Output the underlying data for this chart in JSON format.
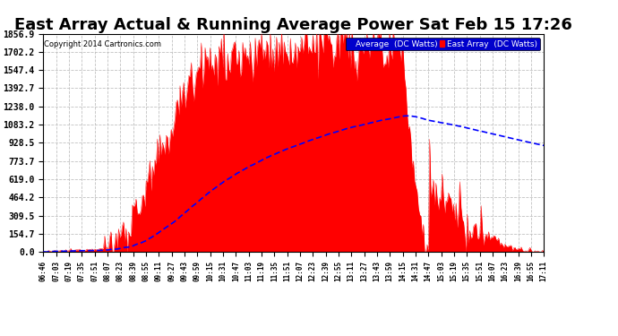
{
  "title": "East Array Actual & Running Average Power Sat Feb 15 17:26",
  "copyright": "Copyright 2014 Cartronics.com",
  "legend_avg": "Average  (DC Watts)",
  "legend_east": "East Array  (DC Watts)",
  "yticks": [
    0.0,
    154.7,
    309.5,
    464.2,
    619.0,
    773.7,
    928.5,
    1083.2,
    1238.0,
    1392.7,
    1547.4,
    1702.2,
    1856.9
  ],
  "ymax": 1856.9,
  "bg_color": "#ffffff",
  "plot_bg_color": "#ffffff",
  "grid_color": "#bbbbbb",
  "bar_color": "#ff0000",
  "avg_line_color": "#0000ff",
  "title_fontsize": 13,
  "xtick_labels": [
    "06:46",
    "07:03",
    "07:19",
    "07:35",
    "07:51",
    "08:07",
    "08:23",
    "08:39",
    "08:55",
    "09:11",
    "09:27",
    "09:43",
    "09:59",
    "10:15",
    "10:31",
    "10:47",
    "11:03",
    "11:19",
    "11:35",
    "11:51",
    "12:07",
    "12:23",
    "12:39",
    "12:55",
    "13:11",
    "13:27",
    "13:43",
    "13:59",
    "14:15",
    "14:31",
    "14:47",
    "15:03",
    "15:19",
    "15:35",
    "15:51",
    "16:07",
    "16:23",
    "16:39",
    "16:55",
    "17:11"
  ]
}
